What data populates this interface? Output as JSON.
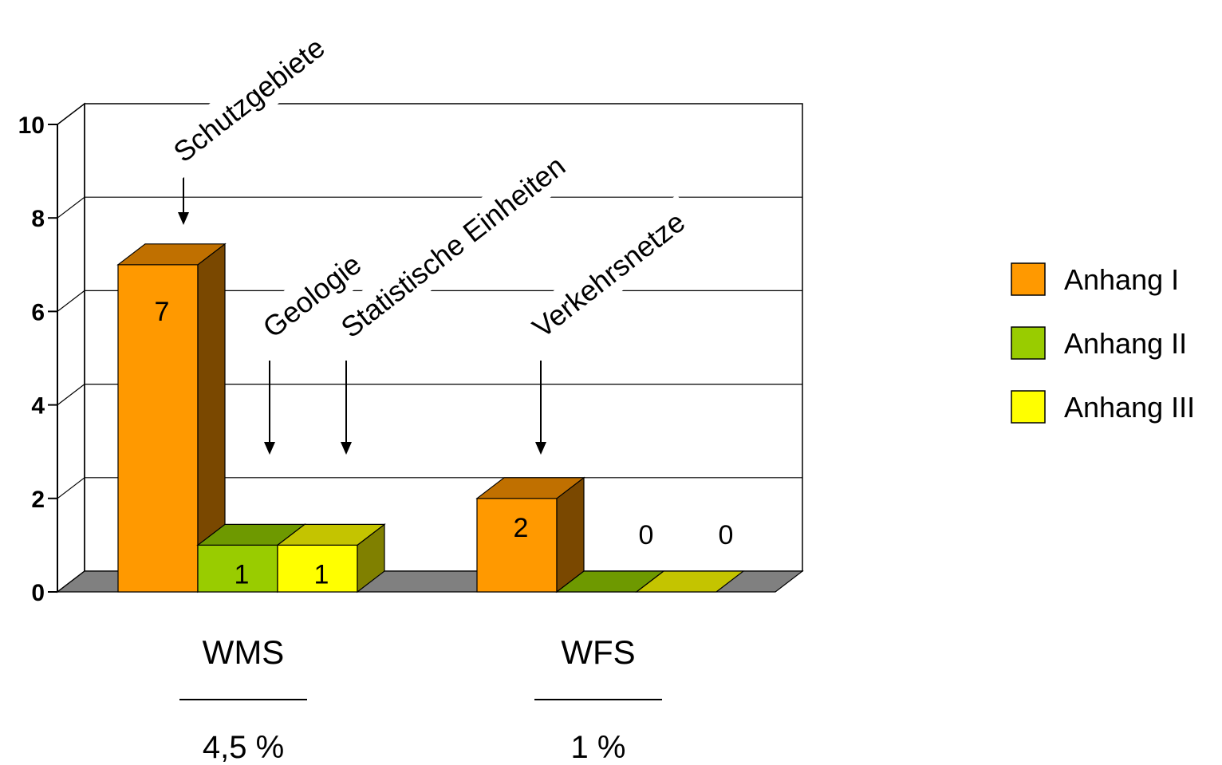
{
  "chart_data": {
    "type": "bar",
    "categories": [
      "WMS",
      "WFS"
    ],
    "category_sublabels": [
      "4,5 %",
      "1 %"
    ],
    "series": [
      {
        "name": "Anhang I",
        "values": [
          7,
          2
        ],
        "color": "#ff9900",
        "top_color": "#c07000",
        "side_color": "#7a4800"
      },
      {
        "name": "Anhang II",
        "values": [
          1,
          0
        ],
        "color": "#99cc00",
        "top_color": "#6e9900",
        "side_color": "#4d6b00"
      },
      {
        "name": "Anhang III",
        "values": [
          1,
          0
        ],
        "color": "#ffff00",
        "top_color": "#c4c400",
        "side_color": "#808000"
      }
    ],
    "ylim": [
      0,
      10
    ],
    "yticks": [
      0,
      2,
      4,
      6,
      8,
      10
    ],
    "grid": true,
    "legend_position": "right",
    "annotations": [
      {
        "text": "Schutzgebiete",
        "category": 0,
        "series": 0
      },
      {
        "text": "Geologie",
        "category": 0,
        "series": 1
      },
      {
        "text": "Statistische Einheiten",
        "category": 0,
        "series": 2
      },
      {
        "text": "Verkehrsnetze",
        "category": 1,
        "series": 0
      }
    ],
    "floor_color": "#808080"
  }
}
